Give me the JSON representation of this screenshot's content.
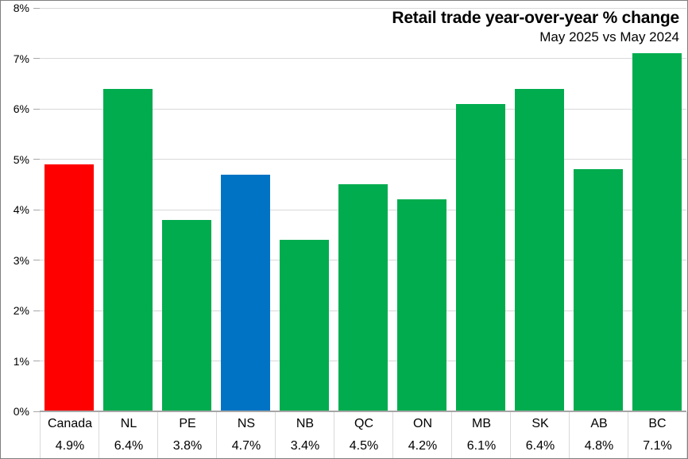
{
  "title": "Retail trade year-over-year % change",
  "subtitle": "May 2025 vs May 2024",
  "colors": {
    "canada_bar": "#ff0000",
    "province_bar": "#00ac4e",
    "nova_scotia_bar": "#0073c4",
    "gridline": "#d9d9d9",
    "axis": "#a6a6a6",
    "text": "#000000",
    "frame_border": "#7f7f7f",
    "background": "#ffffff"
  },
  "chart_data": {
    "type": "bar",
    "title": "Retail trade year-over-year % change",
    "subtitle": "May 2025 vs May 2024",
    "categories": [
      "Canada",
      "NL",
      "PE",
      "NS",
      "NB",
      "QC",
      "ON",
      "MB",
      "SK",
      "AB",
      "BC"
    ],
    "values": [
      4.9,
      6.4,
      3.8,
      4.7,
      3.4,
      4.5,
      4.2,
      6.1,
      6.4,
      4.8,
      7.1
    ],
    "value_labels": [
      "4.9%",
      "6.4%",
      "3.8%",
      "4.7%",
      "3.4%",
      "4.5%",
      "4.2%",
      "6.1%",
      "6.4%",
      "4.8%",
      "7.1%"
    ],
    "bar_colors": [
      "#ff0000",
      "#00ac4e",
      "#00ac4e",
      "#0073c4",
      "#00ac4e",
      "#00ac4e",
      "#00ac4e",
      "#00ac4e",
      "#00ac4e",
      "#00ac4e",
      "#00ac4e"
    ],
    "xlabel": "",
    "ylabel": "",
    "ylim": [
      0,
      8
    ],
    "ytick_labels": [
      "0%",
      "1%",
      "2%",
      "3%",
      "4%",
      "5%",
      "6%",
      "7%",
      "8%"
    ],
    "grid": true,
    "legend": false
  }
}
